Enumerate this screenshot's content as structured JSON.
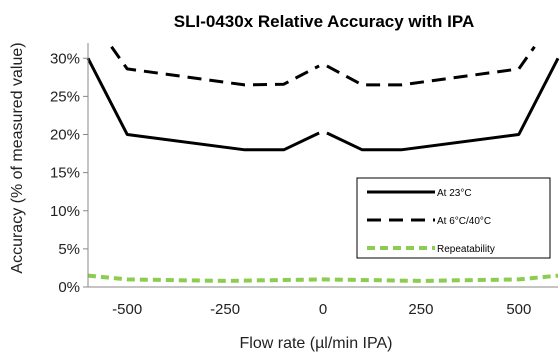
{
  "chart_data": {
    "type": "line",
    "title": "SLI-0430x Relative Accuracy with IPA",
    "xlabel": "Flow rate (µl/min IPA)",
    "ylabel": "Accuracy (% of measured value)",
    "xlim": [
      -600,
      600
    ],
    "ylim": [
      0,
      32
    ],
    "x_ticks": [
      {
        "value": -500,
        "label": "-500"
      },
      {
        "value": -250,
        "label": "-250"
      },
      {
        "value": 0,
        "label": "0"
      },
      {
        "value": 250,
        "label": "250"
      },
      {
        "value": 500,
        "label": "500"
      }
    ],
    "y_ticks": [
      {
        "value": 0,
        "label": "0%"
      },
      {
        "value": 5,
        "label": "5%"
      },
      {
        "value": 10,
        "label": "10%"
      },
      {
        "value": 15,
        "label": "15%"
      },
      {
        "value": 20,
        "label": "20%"
      },
      {
        "value": 25,
        "label": "25%"
      },
      {
        "value": 30,
        "label": "30%"
      }
    ],
    "grid": {
      "x": false,
      "y": false
    },
    "legend_position": "bottom-right",
    "series": [
      {
        "name": "At 23°C",
        "style": "solid",
        "color": "#000000",
        "segments": [
          [
            [
              -600,
              30
            ],
            [
              -500,
              20
            ],
            [
              -200,
              18
            ],
            [
              -100,
              18
            ],
            [
              -10,
              20.2
            ]
          ],
          [
            [
              10,
              20.2
            ],
            [
              100,
              18
            ],
            [
              200,
              18
            ],
            [
              500,
              20
            ],
            [
              600,
              30
            ]
          ]
        ]
      },
      {
        "name": "At 6°C/40°C",
        "style": "dashed",
        "color": "#000000",
        "segments": [
          [
            [
              -540,
              31.5
            ],
            [
              -500,
              28.6
            ],
            [
              -200,
              26.5
            ],
            [
              -100,
              26.6
            ],
            [
              -10,
              29
            ]
          ],
          [
            [
              10,
              29
            ],
            [
              100,
              26.5
            ],
            [
              200,
              26.5
            ],
            [
              500,
              28.6
            ],
            [
              540,
              31.5
            ]
          ]
        ]
      },
      {
        "name": "Repeatability",
        "style": "dashed",
        "color": "#8ccc50",
        "segments": [
          [
            [
              -600,
              1.5
            ],
            [
              -500,
              1.0
            ],
            [
              -250,
              0.8
            ],
            [
              0,
              1.0
            ],
            [
              250,
              0.8
            ],
            [
              500,
              1.0
            ],
            [
              600,
              1.5
            ]
          ]
        ]
      }
    ]
  }
}
